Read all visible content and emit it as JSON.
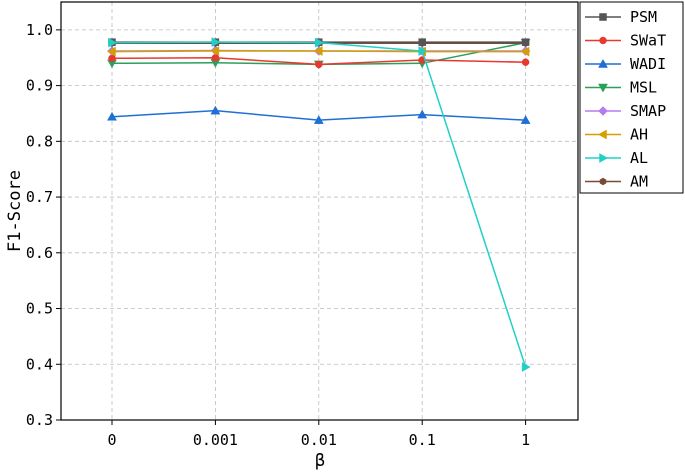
{
  "chart_data": {
    "type": "line",
    "xlabel": "β",
    "ylabel": "F1-Score",
    "categories": [
      "0",
      "0.001",
      "0.01",
      "0.1",
      "1"
    ],
    "ylim": [
      0.3,
      1.05
    ],
    "yticks": [
      "0.3",
      "0.4",
      "0.5",
      "0.6",
      "0.7",
      "0.8",
      "0.9",
      "1.0"
    ],
    "grid": true,
    "legend_position": "outside-top-right",
    "series": [
      {
        "name": "PSM",
        "color": "#555555",
        "marker": "square",
        "values": [
          0.978,
          0.978,
          0.978,
          0.978,
          0.978
        ]
      },
      {
        "name": "SWaT",
        "color": "#e8382f",
        "marker": "circle",
        "values": [
          0.949,
          0.95,
          0.938,
          0.946,
          0.942
        ]
      },
      {
        "name": "WADI",
        "color": "#1f6fd6",
        "marker": "triangle-up",
        "values": [
          0.844,
          0.855,
          0.838,
          0.848,
          0.838
        ]
      },
      {
        "name": "MSL",
        "color": "#2ca05a",
        "marker": "triangle-down",
        "values": [
          0.94,
          0.941,
          0.938,
          0.94,
          0.977
        ]
      },
      {
        "name": "SMAP",
        "color": "#b57cf0",
        "marker": "diamond",
        "values": [
          0.962,
          0.963,
          0.962,
          0.962,
          0.962
        ]
      },
      {
        "name": "AH",
        "color": "#d4a000",
        "marker": "triangle-left",
        "values": [
          0.961,
          0.962,
          0.962,
          0.961,
          0.961
        ]
      },
      {
        "name": "AL",
        "color": "#20d0c8",
        "marker": "triangle-right",
        "values": [
          0.977,
          0.978,
          0.977,
          0.962,
          0.395
        ]
      },
      {
        "name": "AM",
        "color": "#7a4a36",
        "marker": "hexagon",
        "values": [
          0.976,
          0.976,
          0.976,
          0.976,
          0.976
        ]
      }
    ]
  }
}
